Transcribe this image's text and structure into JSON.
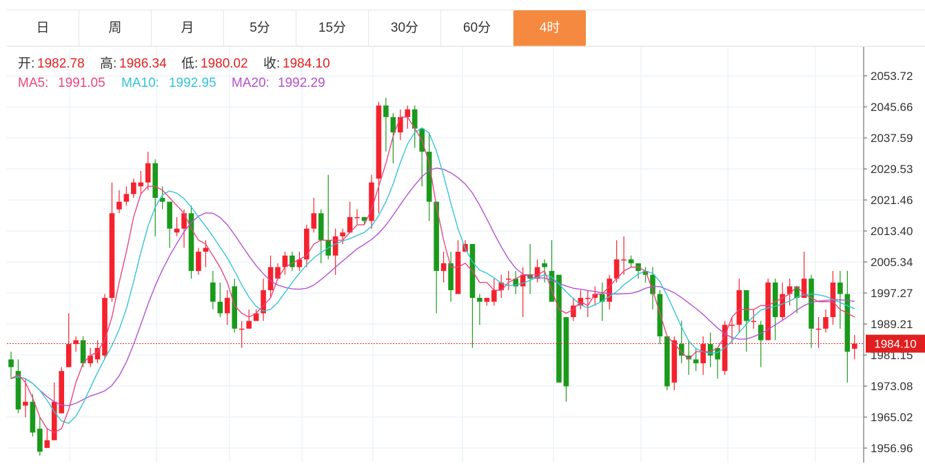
{
  "tabs": [
    {
      "label": "日"
    },
    {
      "label": "周"
    },
    {
      "label": "月"
    },
    {
      "label": "5分"
    },
    {
      "label": "15分"
    },
    {
      "label": "30分"
    },
    {
      "label": "60分"
    },
    {
      "label": "4时"
    }
  ],
  "active_tab": "4时",
  "ohlc_info": {
    "open_label": "开:",
    "open": "1982.78",
    "high_label": "高:",
    "high": "1986.34",
    "low_label": "低:",
    "low": "1980.02",
    "close_label": "收:",
    "close": "1984.10"
  },
  "ma_info": {
    "ma5_label": "MA5:",
    "ma5": "1991.05",
    "ma10_label": "MA10:",
    "ma10": "1992.95",
    "ma20_label": "MA20:",
    "ma20": "1992.29"
  },
  "colors": {
    "up": "#f5222d",
    "down": "#1a9a1a",
    "ma5": "#e8457f",
    "ma10": "#33c3d6",
    "ma20": "#b44fd0",
    "grid": "#e3eef6",
    "accent": "#f5893f",
    "text": "#333333",
    "price_line": "#e02020"
  },
  "chart_data": {
    "type": "candlestick",
    "y_ticks": [
      "2053.72",
      "2045.66",
      "2037.59",
      "2029.53",
      "2021.46",
      "2013.40",
      "2005.34",
      "1997.27",
      "1989.21",
      "1981.15",
      "1973.08",
      "1965.02",
      "1956.96"
    ],
    "ylim": [
      1951.6,
      2061.8
    ],
    "current_price": "1984.10",
    "grid": true,
    "candles": [
      [
        1980,
        1978,
        1982,
        1975
      ],
      [
        1977,
        1967,
        1980,
        1966
      ],
      [
        1968,
        1969,
        1975,
        1965
      ],
      [
        1969,
        1961,
        1971,
        1960
      ],
      [
        1962,
        1956,
        1965,
        1955
      ],
      [
        1957,
        1959,
        1962,
        1957
      ],
      [
        1959,
        1969,
        1974,
        1959
      ],
      [
        1966,
        1977,
        1978,
        1966
      ],
      [
        1978,
        1984,
        1992,
        1978
      ],
      [
        1984,
        1985,
        1986,
        1982
      ],
      [
        1985,
        1979,
        1986,
        1978
      ],
      [
        1979,
        1981,
        1983,
        1978
      ],
      [
        1980,
        1983,
        1985,
        1979
      ],
      [
        1981,
        1996,
        1997,
        1980
      ],
      [
        1996,
        2018,
        2026,
        1995
      ],
      [
        2019,
        2021,
        2024,
        2018
      ],
      [
        2021,
        2023,
        2025,
        2020
      ],
      [
        2023,
        2026,
        2027,
        2022
      ],
      [
        2025,
        2026,
        2029,
        2023
      ],
      [
        2026,
        2031,
        2034,
        2024
      ],
      [
        2031,
        2022,
        2032,
        2012
      ],
      [
        2022,
        2021,
        2025,
        2019
      ],
      [
        2021,
        2014,
        2021,
        2009
      ],
      [
        2013,
        2014,
        2017,
        2012
      ],
      [
        2014,
        2018,
        2019,
        2009
      ],
      [
        2018,
        2003,
        2020,
        2001
      ],
      [
        2003,
        2008,
        2009,
        2002
      ],
      [
        2008,
        2009,
        2011,
        2004
      ],
      [
        2000,
        1995,
        2003,
        1993
      ],
      [
        1995,
        1992,
        2000,
        1991
      ],
      [
        1992,
        1996,
        1998,
        1989
      ],
      [
        1999,
        1988,
        2001,
        1987
      ],
      [
        1988,
        1988,
        1990,
        1983
      ],
      [
        1988,
        1990,
        1993,
        1988
      ],
      [
        1990,
        1992,
        1993,
        1990
      ],
      [
        1992,
        1998,
        2001,
        1990
      ],
      [
        1998,
        2004,
        2007,
        1996
      ],
      [
        2001,
        2004,
        2005,
        2001
      ],
      [
        2004,
        2007,
        2008,
        2002
      ],
      [
        2007,
        2004,
        2008,
        2003
      ],
      [
        2004,
        2006,
        2008,
        2003
      ],
      [
        2006,
        2014,
        2015,
        2004
      ],
      [
        2014,
        2018,
        2022,
        2013
      ],
      [
        2018,
        2011,
        2019,
        2005
      ],
      [
        2011,
        2007,
        2028,
        2006
      ],
      [
        2007,
        2012,
        2014,
        2002
      ],
      [
        2012,
        2013,
        2014,
        2010
      ],
      [
        2013,
        2017,
        2021,
        2014
      ],
      [
        2017,
        2017,
        2019,
        2015
      ],
      [
        2017,
        2016,
        2017,
        2015
      ],
      [
        2016,
        2026,
        2028,
        2014
      ],
      [
        2027,
        2046,
        2047,
        2018
      ],
      [
        2046,
        2043,
        2048,
        2034
      ],
      [
        2043,
        2039,
        2044,
        2031
      ],
      [
        2039,
        2043,
        2045,
        2037
      ],
      [
        2043,
        2045,
        2046,
        2040
      ],
      [
        2045,
        2040,
        2046,
        2035
      ],
      [
        2040,
        2034,
        2040,
        2025
      ],
      [
        2034,
        2021,
        2039,
        2016
      ],
      [
        2021,
        2003,
        2021,
        1992
      ],
      [
        2003,
        2005,
        2008,
        2000
      ],
      [
        2005,
        1998,
        2008,
        1995
      ],
      [
        1997,
        2008,
        2011,
        2005
      ],
      [
        2008,
        2010,
        2011,
        2008
      ],
      [
        2010,
        1996,
        2010,
        1983
      ],
      [
        1996,
        1995,
        1997,
        1989
      ],
      [
        1995,
        1996,
        1996,
        1994
      ],
      [
        1995,
        1998,
        2001,
        1994
      ],
      [
        1998,
        2000,
        2002,
        1996
      ],
      [
        2001,
        2001,
        2003,
        1998
      ],
      [
        2001,
        1999,
        2003,
        1997
      ],
      [
        1999,
        2002,
        2004,
        1991
      ],
      [
        2002,
        2001,
        2010,
        1997
      ],
      [
        2001,
        2004,
        2006,
        2000
      ],
      [
        2005,
        2004,
        2006,
        2000
      ],
      [
        2003,
        1995,
        2011,
        1995
      ],
      [
        2002,
        1974,
        2002,
        1974
      ],
      [
        1991,
        1973,
        1991,
        1969
      ],
      [
        1991,
        1994,
        1996,
        1990
      ],
      [
        1994,
        1996,
        1998,
        1993
      ],
      [
        1996,
        1996,
        1998,
        1991
      ],
      [
        1996,
        1997,
        1999,
        1994
      ],
      [
        1997,
        1995,
        2000,
        1990
      ],
      [
        1995,
        2001,
        2002,
        1993
      ],
      [
        2001,
        2006,
        2011,
        2000
      ],
      [
        2006,
        2006,
        2012,
        2002
      ],
      [
        2006,
        2005,
        2007,
        2004
      ],
      [
        2005,
        2003,
        2005,
        2001
      ],
      [
        2003,
        2002,
        2004,
        2000
      ],
      [
        2002,
        1997,
        2004,
        1993
      ],
      [
        1997,
        1986,
        1998,
        1984
      ],
      [
        1986,
        1973,
        1986,
        1972
      ],
      [
        1974,
        1985,
        1986,
        1972
      ],
      [
        1984,
        1981,
        1990,
        1979
      ],
      [
        1981,
        1980,
        1985,
        1976
      ],
      [
        1980,
        1979,
        1983,
        1977
      ],
      [
        1979,
        1984,
        1986,
        1976
      ],
      [
        1984,
        1981,
        1987,
        1978
      ],
      [
        1983,
        1980,
        1983,
        1975
      ],
      [
        1977,
        1989,
        1990,
        1976
      ],
      [
        1989,
        1989,
        1991,
        1984
      ],
      [
        1989,
        1998,
        2001,
        1987
      ],
      [
        1998,
        1990,
        1998,
        1982
      ],
      [
        1990,
        1990,
        1993,
        1988
      ],
      [
        1989,
        1985,
        1990,
        1978
      ],
      [
        1985,
        2000,
        2001,
        1987
      ],
      [
        2000,
        1991,
        2001,
        1985
      ],
      [
        1991,
        1997,
        2000,
        1990
      ],
      [
        1997,
        1999,
        2001,
        1994
      ],
      [
        1999,
        1996,
        1999,
        1992
      ],
      [
        1996,
        2001,
        2008,
        1997
      ],
      [
        2001,
        1988,
        2002,
        1983
      ],
      [
        1988,
        1988,
        1991,
        1983
      ],
      [
        1988,
        1991,
        1993,
        1987
      ],
      [
        1991,
        2000,
        2003,
        1989
      ],
      [
        2000,
        1997,
        2003,
        1988
      ],
      [
        1997,
        1982,
        2003,
        1974
      ],
      [
        1982.78,
        1984.1,
        1986.34,
        1980.02
      ]
    ],
    "ma5": [
      1975,
      1976,
      1974,
      1970,
      1965,
      1962,
      1961,
      1962,
      1967,
      1974,
      1979,
      1981,
      1982,
      1985,
      1991,
      2000,
      2008,
      2017,
      2023,
      2025,
      2025,
      2024,
      2022,
      2020,
      2018,
      2014,
      2011,
      2010,
      2007,
      2004,
      2000,
      1994,
      1992,
      1991,
      1992,
      1994,
      1996,
      2001,
      2004,
      2005,
      2006,
      2007,
      2010,
      2011,
      2011,
      2011,
      2011,
      2013,
      2015,
      2015,
      2019,
      2025,
      2031,
      2038,
      2043,
      2043,
      2040,
      2037,
      2031,
      2020,
      2011,
      2004,
      2004,
      2005,
      2003,
      2000,
      2000,
      1998,
      1998,
      2000,
      2001,
      2002,
      2002,
      2002,
      2003,
      1998,
      1993,
      1992,
      1993,
      1995,
      1994,
      1997,
      1997,
      1999,
      2001,
      2003,
      2004,
      2004,
      2003,
      1998,
      1992,
      1986,
      1984,
      1982,
      1980,
      1982,
      1982,
      1982,
      1983,
      1986,
      1991,
      1993,
      1993,
      1993,
      1994,
      1994,
      1995,
      1996,
      1997,
      1999,
      1997,
      1996,
      1995,
      1995,
      1995,
      1993,
      1992,
      1991
    ]
  }
}
